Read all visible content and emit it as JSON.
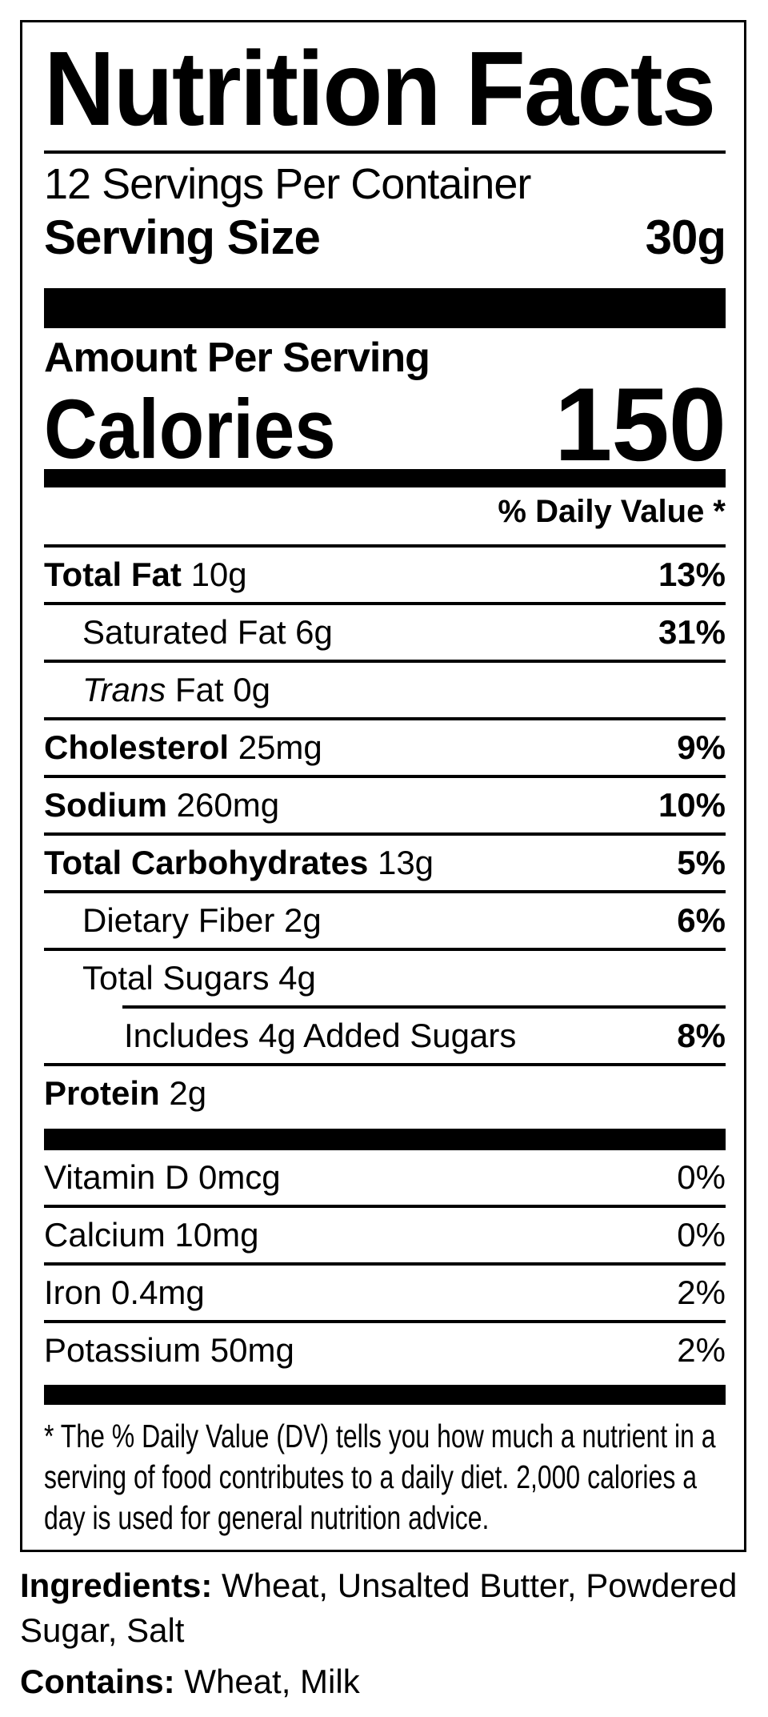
{
  "colors": {
    "background": "#ffffff",
    "ink": "#000000"
  },
  "label": {
    "title": "Nutrition Facts",
    "servings_per_container": "12 Servings Per Container",
    "serving_size": {
      "label": "Serving Size",
      "value": "30g"
    },
    "amount_per_serving": "Amount Per Serving",
    "calories": {
      "label": "Calories",
      "value": "150"
    },
    "daily_value_header": "% Daily Value *",
    "nutrients": [
      {
        "name_bold": "Total Fat",
        "name": "10g",
        "dv": "13%",
        "indent": 0
      },
      {
        "name": "Saturated Fat 6g",
        "dv": "31%",
        "indent": 1
      },
      {
        "name_italic": "Trans",
        "name": "Fat 0g",
        "dv": "",
        "indent": 1
      },
      {
        "name_bold": "Cholesterol",
        "name": "25mg",
        "dv": "9%",
        "indent": 0
      },
      {
        "name_bold": "Sodium",
        "name": "260mg",
        "dv": "10%",
        "indent": 0
      },
      {
        "name_bold": "Total Carbohydrates",
        "name": "13g",
        "dv": "5%",
        "indent": 0
      },
      {
        "name": "Dietary Fiber 2g",
        "dv": "6%",
        "indent": 1
      },
      {
        "name": "Total Sugars 4g",
        "dv": "",
        "indent": 1
      },
      {
        "name": "Includes 4g Added Sugars",
        "dv": "8%",
        "indent": 2,
        "inset_rule": true
      },
      {
        "name_bold": "Protein",
        "name": "2g",
        "dv": "",
        "indent": 0
      }
    ],
    "vitamins": [
      {
        "name": "Vitamin D 0mcg",
        "dv": "0%"
      },
      {
        "name": "Calcium 10mg",
        "dv": "0%"
      },
      {
        "name": "Iron 0.4mg",
        "dv": "2%"
      },
      {
        "name": "Potassium 50mg",
        "dv": "2%"
      }
    ],
    "footnote_lines": [
      "* The % Daily Value (DV) tells you how much a nutrient in a",
      "serving of food contributes to a daily diet. 2,000 calories a",
      "day is used for general nutrition advice."
    ]
  },
  "ingredients": {
    "label": "Ingredients:",
    "text": "Wheat, Unsalted Butter, Powdered Sugar, Salt"
  },
  "contains": {
    "label": "Contains:",
    "text": "Wheat, Milk"
  }
}
